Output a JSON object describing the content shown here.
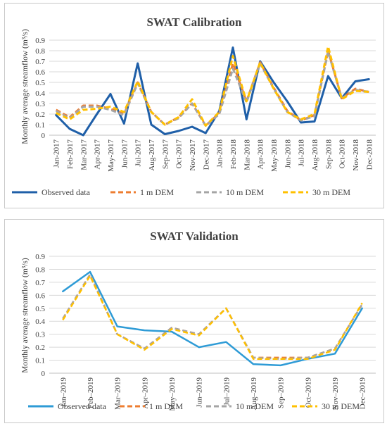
{
  "chart_data": [
    {
      "type": "line",
      "title": "SWAT Calibration",
      "ylabel": "Monthly average streamflow (m³/s)",
      "xlabel": "",
      "ylim": [
        0,
        0.9
      ],
      "yticks": [
        "0",
        "0.1",
        "0.2",
        "0.3",
        "0.4",
        "0.5",
        "0.6",
        "0.7",
        "0.8",
        "0.9"
      ],
      "grid": true,
      "legend": "bottom",
      "categories": [
        "Jan-2017",
        "Feb-2017",
        "Mar-2017",
        "Apr-2017",
        "May-2017",
        "Jun-2017",
        "Jul-2017",
        "Aug-2017",
        "Sep-2017",
        "Oct-2017",
        "Nov-2017",
        "Dec-2017",
        "Jan-2018",
        "Feb-2018",
        "Mar-2018",
        "Apr-2018",
        "May-2018",
        "Jun-2018",
        "Jul-2018",
        "Aug-2018",
        "Sep-2018",
        "Oct-2018",
        "Nov-2018",
        "Dec-2018"
      ],
      "series": [
        {
          "name": "Observed data",
          "color": "#1f5fa8",
          "dash": "solid",
          "width": 3,
          "values": [
            0.19,
            0.06,
            0.0,
            0.2,
            0.39,
            0.11,
            0.68,
            0.1,
            0.01,
            0.04,
            0.08,
            0.02,
            0.23,
            0.83,
            0.15,
            0.7,
            0.5,
            0.32,
            0.12,
            0.13,
            0.56,
            0.35,
            0.51,
            0.53
          ]
        },
        {
          "name": "1 m DEM",
          "color": "#ed7d31",
          "dash": "dashed",
          "width": 3,
          "values": [
            0.24,
            0.17,
            0.28,
            0.28,
            0.25,
            0.2,
            0.5,
            0.22,
            0.1,
            0.17,
            0.3,
            0.09,
            0.21,
            0.68,
            0.32,
            0.69,
            0.45,
            0.23,
            0.14,
            0.19,
            0.8,
            0.35,
            0.44,
            0.41
          ]
        },
        {
          "name": "10 m DEM",
          "color": "#a5a5a5",
          "dash": "dashed",
          "width": 3,
          "values": [
            0.23,
            0.16,
            0.27,
            0.27,
            0.24,
            0.19,
            0.49,
            0.22,
            0.1,
            0.16,
            0.3,
            0.09,
            0.2,
            0.63,
            0.31,
            0.68,
            0.44,
            0.22,
            0.14,
            0.18,
            0.79,
            0.35,
            0.43,
            0.41
          ]
        },
        {
          "name": "30 m DEM",
          "color": "#ffc000",
          "dash": "dashed",
          "width": 3,
          "values": [
            0.21,
            0.15,
            0.24,
            0.25,
            0.27,
            0.22,
            0.51,
            0.22,
            0.1,
            0.17,
            0.34,
            0.09,
            0.22,
            0.75,
            0.32,
            0.69,
            0.44,
            0.22,
            0.15,
            0.2,
            0.84,
            0.34,
            0.42,
            0.41
          ]
        }
      ]
    },
    {
      "type": "line",
      "title": "SWAT Validation",
      "ylabel": "Monthly average streamflow (m³/s)",
      "xlabel": "",
      "ylim": [
        0,
        0.9
      ],
      "yticks": [
        "0",
        "0.1",
        "0.2",
        "0.3",
        "0.4",
        "0.5",
        "0.6",
        "0.7",
        "0.8",
        "0.9"
      ],
      "grid": true,
      "legend": "bottom",
      "categories": [
        "Jan–2019",
        "Feb–2019",
        "Mar–2019",
        "Apr–2019",
        "May–2019",
        "Jun–2019",
        "Jul–2019",
        "Aug–2019",
        "Sep–2019",
        "Oct–2019",
        "Nov–2019",
        "Dec–2019"
      ],
      "series": [
        {
          "name": "Observed data",
          "color": "#2e9bd6",
          "dash": "solid",
          "width": 2.5,
          "values": [
            0.63,
            0.78,
            0.36,
            0.33,
            0.32,
            0.2,
            0.24,
            0.07,
            0.06,
            0.11,
            0.15,
            0.5
          ]
        },
        {
          "name": "1 m DEM",
          "color": "#ed7d31",
          "dash": "dashed",
          "width": 2.5,
          "values": [
            0.42,
            0.76,
            0.3,
            0.19,
            0.35,
            0.3,
            0.5,
            0.12,
            0.12,
            0.12,
            0.19,
            0.53
          ]
        },
        {
          "name": "10 m DEM",
          "color": "#a5a5a5",
          "dash": "dashed",
          "width": 2.5,
          "values": [
            0.42,
            0.76,
            0.3,
            0.19,
            0.35,
            0.3,
            0.5,
            0.12,
            0.11,
            0.12,
            0.19,
            0.53
          ]
        },
        {
          "name": "30 m DEM",
          "color": "#ffc000",
          "dash": "dashed",
          "width": 2.5,
          "values": [
            0.41,
            0.75,
            0.3,
            0.18,
            0.34,
            0.29,
            0.5,
            0.11,
            0.11,
            0.11,
            0.18,
            0.54
          ]
        }
      ]
    }
  ]
}
